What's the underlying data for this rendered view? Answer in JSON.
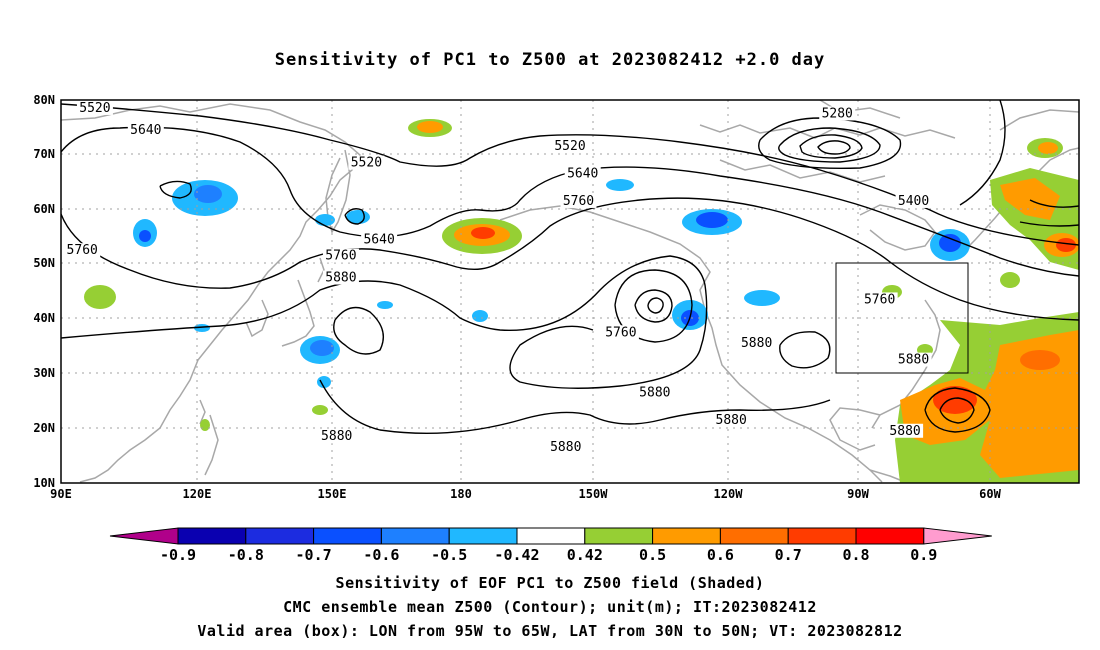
{
  "title": "Sensitivity of PC1 to Z500 at 2023082412 +2.0 day",
  "axes": {
    "lat_labels": [
      "80N",
      "70N",
      "60N",
      "50N",
      "40N",
      "30N",
      "20N",
      "10N"
    ],
    "lon_labels": [
      "90E",
      "120E",
      "150E",
      "180",
      "150W",
      "120W",
      "90W",
      "60W"
    ]
  },
  "contour_labels": [
    {
      "text": "5520",
      "lon": 98,
      "lat": 78
    },
    {
      "text": "5640",
      "lon": 110,
      "lat": 74
    },
    {
      "text": "5520",
      "lon": 162,
      "lat": 68
    },
    {
      "text": "5520",
      "lon": -150,
      "lat": 71
    },
    {
      "text": "5640",
      "lon": -147,
      "lat": 66
    },
    {
      "text": "5760",
      "lon": -148,
      "lat": 61
    },
    {
      "text": "5280",
      "lon": -87,
      "lat": 77
    },
    {
      "text": "5400",
      "lon": -69,
      "lat": 61
    },
    {
      "text": "5640",
      "lon": 165,
      "lat": 54
    },
    {
      "text": "5760",
      "lon": 95,
      "lat": 52
    },
    {
      "text": "5760",
      "lon": 156,
      "lat": 51
    },
    {
      "text": "5880",
      "lon": 156,
      "lat": 47
    },
    {
      "text": "5760",
      "lon": -138,
      "lat": 37
    },
    {
      "text": "5880",
      "lon": -106,
      "lat": 35
    },
    {
      "text": "5760",
      "lon": -77,
      "lat": 43
    },
    {
      "text": "5880",
      "lon": -69,
      "lat": 32
    },
    {
      "text": "5880",
      "lon": -130,
      "lat": 26
    },
    {
      "text": "5880",
      "lon": -112,
      "lat": 21
    },
    {
      "text": "5880",
      "lon": 155,
      "lat": 18
    },
    {
      "text": "5880",
      "lon": -151,
      "lat": 16
    },
    {
      "text": "5880",
      "lon": -71,
      "lat": 19
    }
  ],
  "colorbar": {
    "labels": [
      "-0.9",
      "-0.8",
      "-0.7",
      "-0.6",
      "-0.5",
      "-0.42",
      "0.42",
      "0.5",
      "0.6",
      "0.7",
      "0.8",
      "0.9"
    ],
    "colors": [
      "#b0008a",
      "#0a00b0",
      "#1c2ce0",
      "#0a50ff",
      "#1e80ff",
      "#20b8ff",
      "#00c8f8",
      "#ffffff",
      "#96cf34",
      "#ff9b00",
      "#ff6e00",
      "#ff3c00",
      "#ff0000",
      "#ff9ccf"
    ]
  },
  "valid_box": {
    "lon_min": -95,
    "lon_max": -65,
    "lat_min": 30,
    "lat_max": 50
  },
  "captions": {
    "line1": "Sensitivity of EOF PC1 to Z500 field (Shaded)",
    "line2": "CMC ensemble mean Z500 (Contour); unit(m); IT:2023082412",
    "line3": "Valid area (box): LON from 95W to 65W, LAT from 30N to 50N; VT: 2023082812"
  }
}
